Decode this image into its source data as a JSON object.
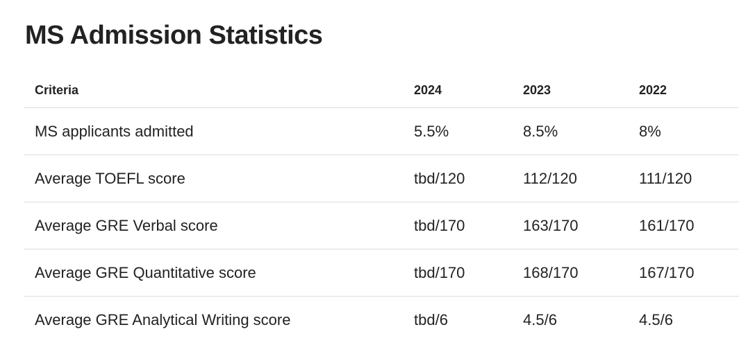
{
  "title": "MS Admission Statistics",
  "table": {
    "header": [
      "Criteria",
      "2024",
      "2023",
      "2022"
    ],
    "rows": [
      [
        "MS applicants admitted",
        "5.5%",
        "8.5%",
        "8%"
      ],
      [
        "Average TOEFL score",
        "tbd/120",
        "112/120",
        "111/120"
      ],
      [
        "Average GRE Verbal score",
        "tbd/170",
        "163/170",
        "161/170"
      ],
      [
        "Average GRE Quantitative score",
        "tbd/170",
        "168/170",
        "167/170"
      ],
      [
        "Average GRE Analytical Writing score",
        "tbd/6",
        "4.5/6",
        "4.5/6"
      ]
    ]
  }
}
